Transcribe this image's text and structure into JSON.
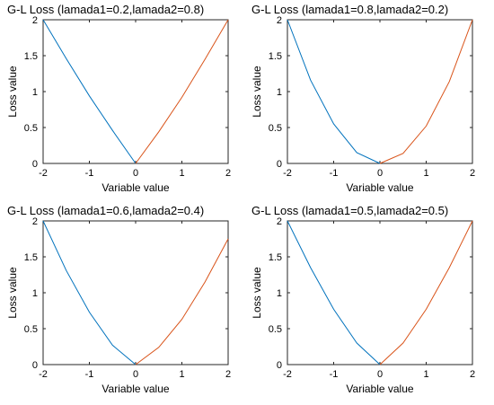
{
  "chart_data": [
    {
      "type": "line",
      "title": "G-L Loss (lamada1=0.2,lamada2=0.8)",
      "xlabel": "Variable value",
      "ylabel": "Loss value",
      "xlim": [
        -2,
        2
      ],
      "ylim": [
        0,
        2
      ],
      "xticks": [
        "-2",
        "-1",
        "0",
        "1",
        "2"
      ],
      "yticks": [
        "0",
        "0.5",
        "1",
        "1.5",
        "2"
      ],
      "grid": false,
      "series": [
        {
          "color": "#0072BD",
          "x": [
            -2,
            -1.5,
            -1,
            -0.5,
            0
          ],
          "y": [
            2.0,
            1.46,
            0.94,
            0.46,
            0.0
          ]
        },
        {
          "color": "#D95319",
          "x": [
            0,
            0.5,
            1,
            1.5,
            2
          ],
          "y": [
            0.0,
            0.44,
            0.92,
            1.45,
            2.0
          ]
        }
      ]
    },
    {
      "type": "line",
      "title": "G-L Loss (lamada1=0.8,lamada2=0.2)",
      "xlabel": "Variable value",
      "ylabel": "Loss value",
      "xlim": [
        -2,
        2
      ],
      "ylim": [
        0,
        2
      ],
      "xticks": [
        "-2",
        "-1",
        "0",
        "1",
        "2"
      ],
      "yticks": [
        "0",
        "0.5",
        "1",
        "1.5",
        "2"
      ],
      "grid": false,
      "series": [
        {
          "color": "#0072BD",
          "x": [
            -2,
            -1.5,
            -1,
            -0.5,
            0
          ],
          "y": [
            2.0,
            1.16,
            0.55,
            0.15,
            0.0
          ]
        },
        {
          "color": "#D95319",
          "x": [
            0,
            0.5,
            1,
            1.5,
            2
          ],
          "y": [
            0.0,
            0.14,
            0.52,
            1.14,
            2.0
          ]
        }
      ]
    },
    {
      "type": "line",
      "title": "G-L Loss (lamada1=0.6,lamada2=0.4)",
      "xlabel": "Variable value",
      "ylabel": "Loss value",
      "xlim": [
        -2,
        2
      ],
      "ylim": [
        0,
        2
      ],
      "xticks": [
        "-2",
        "-1",
        "0",
        "1",
        "2"
      ],
      "yticks": [
        "0",
        "0.5",
        "1",
        "1.5",
        "2"
      ],
      "grid": false,
      "series": [
        {
          "color": "#0072BD",
          "x": [
            -2,
            -1.5,
            -1,
            -0.5,
            0
          ],
          "y": [
            2.0,
            1.31,
            0.73,
            0.27,
            0.0
          ]
        },
        {
          "color": "#D95319",
          "x": [
            0,
            0.5,
            1,
            1.5,
            2
          ],
          "y": [
            0.0,
            0.24,
            0.63,
            1.15,
            1.75
          ]
        }
      ]
    },
    {
      "type": "line",
      "title": "G-L Loss (lamada1=0.5,lamada2=0.5)",
      "xlabel": "Variable value",
      "ylabel": "Loss value",
      "xlim": [
        -2,
        2
      ],
      "ylim": [
        0,
        2
      ],
      "xticks": [
        "-2",
        "-1",
        "0",
        "1",
        "2"
      ],
      "yticks": [
        "0",
        "0.5",
        "1",
        "1.5",
        "2"
      ],
      "grid": false,
      "series": [
        {
          "color": "#0072BD",
          "x": [
            -2,
            -1.5,
            -1,
            -0.5,
            0
          ],
          "y": [
            2.0,
            1.35,
            0.77,
            0.3,
            0.0
          ]
        },
        {
          "color": "#D95319",
          "x": [
            0,
            0.5,
            1,
            1.5,
            2
          ],
          "y": [
            0.0,
            0.3,
            0.77,
            1.35,
            2.0
          ]
        }
      ]
    }
  ]
}
